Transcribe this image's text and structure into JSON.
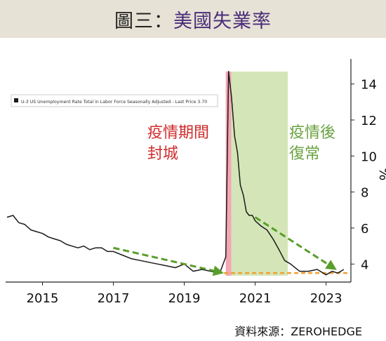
{
  "title": {
    "prefix": "圖三：",
    "main": "美國失業率"
  },
  "source": "資料來源：ZEROHEDGE",
  "chart_data": {
    "type": "line",
    "title": "美國失業率",
    "ylabel": "%",
    "ylim": [
      3,
      15
    ],
    "xlim": [
      2014.0,
      2023.7
    ],
    "x_ticks": [
      2015,
      2017,
      2019,
      2021,
      2023
    ],
    "y_ticks": [
      4,
      6,
      8,
      10,
      12,
      14
    ],
    "grid": false,
    "legend": {
      "position": "top-left",
      "text": "U-3 US Unemployment Rate Total in Labor Force Seasonally Adjusted - Last Price 3.70"
    },
    "series": [
      {
        "name": "U-3 US Unemployment Rate Total in Labor Force Seasonally Adjusted",
        "color": "#1a1a1a",
        "x": [
          2014.0,
          2014.17,
          2014.33,
          2014.5,
          2014.67,
          2014.83,
          2015.0,
          2015.17,
          2015.33,
          2015.5,
          2015.67,
          2015.83,
          2016.0,
          2016.17,
          2016.33,
          2016.5,
          2016.67,
          2016.83,
          2017.0,
          2017.25,
          2017.5,
          2017.75,
          2018.0,
          2018.25,
          2018.5,
          2018.75,
          2019.0,
          2019.25,
          2019.5,
          2019.75,
          2020.0,
          2020.17,
          2020.25,
          2020.33,
          2020.42,
          2020.5,
          2020.58,
          2020.67,
          2020.75,
          2020.83,
          2020.92,
          2021.0,
          2021.17,
          2021.33,
          2021.5,
          2021.67,
          2021.83,
          2022.0,
          2022.25,
          2022.5,
          2022.75,
          2023.0,
          2023.17,
          2023.33,
          2023.5
        ],
        "y": [
          6.6,
          6.7,
          6.3,
          6.2,
          5.9,
          5.8,
          5.7,
          5.5,
          5.4,
          5.3,
          5.1,
          5.0,
          4.9,
          5.0,
          4.8,
          4.9,
          4.9,
          4.7,
          4.7,
          4.5,
          4.3,
          4.2,
          4.1,
          4.0,
          3.9,
          3.8,
          4.0,
          3.6,
          3.7,
          3.6,
          3.5,
          4.4,
          14.7,
          13.3,
          11.1,
          10.2,
          8.4,
          7.8,
          6.9,
          6.7,
          6.7,
          6.4,
          6.1,
          5.9,
          5.4,
          4.8,
          4.2,
          4.0,
          3.6,
          3.6,
          3.7,
          3.4,
          3.6,
          3.5,
          3.7
        ]
      }
    ],
    "annotations": [
      {
        "text": [
          "疫情期間",
          "封城"
        ],
        "color": "#d12b2b",
        "x_start": 2020.17,
        "x_end": 2020.33,
        "band_color": "#f2a7b3"
      },
      {
        "text": [
          "疫情後",
          "復常"
        ],
        "color": "#6aa13f",
        "x_start": 2020.33,
        "x_end": 2021.92,
        "band_color": "#d4e6b8"
      }
    ],
    "reference_line": {
      "y": 3.5,
      "color": "#f0a030"
    },
    "trend_arrows": [
      {
        "from": [
          2017.0,
          4.9
        ],
        "to": [
          2020.0,
          3.55
        ],
        "color": "#5a9e2a"
      },
      {
        "from": [
          2021.0,
          6.6
        ],
        "to": [
          2023.2,
          3.8
        ],
        "color": "#5a9e2a"
      }
    ]
  }
}
